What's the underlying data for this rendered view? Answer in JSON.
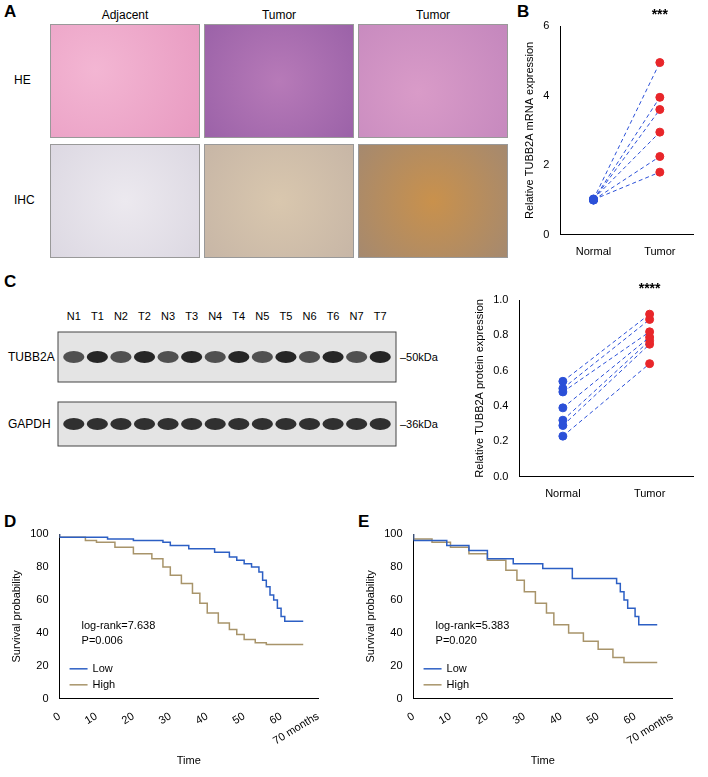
{
  "panel_a": {
    "panel": "A",
    "columns": [
      "Adjacent",
      "Tumor",
      "Tumor"
    ],
    "rows": [
      "HE",
      "IHC"
    ]
  },
  "blot": {
    "panel": "C",
    "lanes": [
      "N1",
      "T1",
      "N2",
      "T2",
      "N3",
      "T3",
      "N4",
      "T4",
      "N5",
      "T5",
      "N6",
      "T6",
      "N7",
      "T7"
    ],
    "bands": [
      {
        "name": "TUBB2A",
        "marker": "–50kDa"
      },
      {
        "name": "GAPDH",
        "marker": "–36kDa"
      }
    ]
  },
  "chart_data": [
    {
      "panel": "B",
      "type": "line",
      "categories": [
        "Normal",
        "Tumor"
      ],
      "y_label": "Relative TUBB2A mRNA expression",
      "ylim": [
        0,
        6
      ],
      "yticks": [
        0,
        2,
        4,
        6
      ],
      "grid": false,
      "color": "#2b50d8",
      "colors": [
        "#2b50d8",
        "#e8262a"
      ],
      "line_style": "dashed",
      "marker": "circle",
      "annotations": [
        "***"
      ],
      "series": [
        {
          "values": [
            1.02,
            4.95
          ]
        },
        {
          "values": [
            1.0,
            3.95
          ]
        },
        {
          "values": [
            1.0,
            3.6
          ]
        },
        {
          "values": [
            1.03,
            2.95
          ]
        },
        {
          "values": [
            1.0,
            2.25
          ]
        },
        {
          "values": [
            1.01,
            1.8
          ]
        }
      ]
    },
    {
      "type": "line",
      "categories": [
        "Normal",
        "Tumor"
      ],
      "y_label": "Relative TUBB2A protein expression",
      "ylim": [
        0,
        1
      ],
      "yticks": [
        {
          "value": 0,
          "label": "0.0"
        },
        {
          "value": 0.2,
          "label": "0.2"
        },
        {
          "value": 0.4,
          "label": "0.4"
        },
        {
          "value": 0.6,
          "label": "0.6"
        },
        {
          "value": 0.8,
          "label": "0.8"
        },
        {
          "value": 1,
          "label": "1.0"
        }
      ],
      "grid": false,
      "color": "#2b50d8",
      "colors": [
        "#2b50d8",
        "#e8262a"
      ],
      "line_style": "dashed",
      "marker": "circle",
      "annotations": [
        "****"
      ],
      "series": [
        {
          "values": [
            0.54,
            0.92
          ]
        },
        {
          "values": [
            0.5,
            0.89
          ]
        },
        {
          "values": [
            0.48,
            0.82
          ]
        },
        {
          "values": [
            0.39,
            0.79
          ]
        },
        {
          "values": [
            0.32,
            0.77
          ]
        },
        {
          "values": [
            0.29,
            0.75
          ]
        },
        {
          "values": [
            0.23,
            0.64
          ]
        }
      ]
    },
    {
      "panel": "D",
      "type": "line",
      "x_label": "Time",
      "y_label": "Survival probability",
      "xlim": [
        0,
        70
      ],
      "xticks": [
        0,
        10,
        20,
        30,
        40,
        50,
        60,
        {
          "value": 70,
          "label": "70 months"
        }
      ],
      "ylim": [
        0,
        100
      ],
      "yticks": [
        0,
        20,
        40,
        60,
        80,
        100
      ],
      "grid": false,
      "legend": "lower left",
      "line_style": "steps",
      "annotations": [
        "log-rank=7.638",
        "P=0.006"
      ],
      "series": [
        {
          "name": "Low",
          "color": "#2c5fc4",
          "x": [
            0,
            13,
            20,
            28,
            30,
            35,
            42,
            46,
            48,
            50,
            52,
            54,
            55,
            56,
            57,
            58,
            59,
            60,
            61,
            62,
            66
          ],
          "values": [
            100,
            98,
            97,
            96,
            95,
            93,
            91,
            89,
            86,
            84,
            82,
            80,
            77,
            72,
            68,
            63,
            60,
            55,
            50,
            47,
            47
          ]
        },
        {
          "name": "High",
          "color": "#a8946a",
          "x": [
            0,
            7,
            10,
            15,
            20,
            25,
            28,
            30,
            33,
            36,
            38,
            40,
            43,
            46,
            48,
            50,
            53,
            56,
            60,
            66
          ],
          "values": [
            100,
            98,
            96,
            95,
            92,
            88,
            85,
            80,
            75,
            70,
            64,
            58,
            52,
            46,
            42,
            39,
            36,
            34,
            33,
            33
          ]
        }
      ]
    },
    {
      "panel": "E",
      "type": "line",
      "x_label": "Time",
      "y_label": "Survival probability",
      "xlim": [
        0,
        70
      ],
      "xticks": [
        0,
        10,
        20,
        30,
        40,
        50,
        60,
        {
          "value": 70,
          "label": "70 months"
        }
      ],
      "ylim": [
        0,
        100
      ],
      "yticks": [
        0,
        20,
        40,
        60,
        80,
        100
      ],
      "grid": false,
      "legend": "lower left",
      "line_style": "steps",
      "annotations": [
        "log-rank=5.383",
        "P=0.020"
      ],
      "series": [
        {
          "name": "Low",
          "color": "#2c5fc4",
          "x": [
            0,
            9,
            15,
            20,
            27,
            35,
            43,
            55,
            56,
            57,
            58,
            60,
            61,
            62,
            66
          ],
          "values": [
            100,
            96,
            93,
            90,
            85,
            82,
            79,
            73,
            70,
            65,
            60,
            55,
            50,
            45,
            45
          ]
        },
        {
          "name": "High",
          "color": "#a8946a",
          "x": [
            0,
            5,
            10,
            15,
            20,
            25,
            28,
            30,
            33,
            36,
            38,
            42,
            46,
            50,
            54,
            57,
            60,
            66
          ],
          "values": [
            100,
            97,
            95,
            92,
            88,
            84,
            78,
            72,
            65,
            58,
            52,
            45,
            40,
            35,
            30,
            25,
            22,
            22
          ]
        }
      ]
    }
  ]
}
